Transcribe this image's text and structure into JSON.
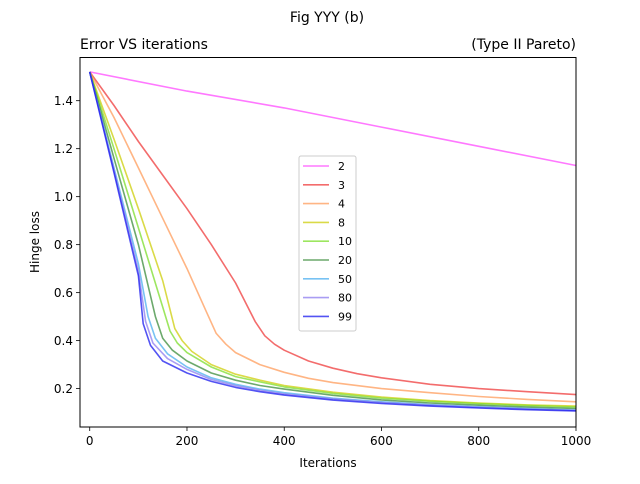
{
  "figure": {
    "suptitle": "Fig YYY (b)",
    "title_left": "Error VS iterations",
    "title_right": "(Type II Pareto)"
  },
  "chart_data": {
    "type": "line",
    "xlabel": "Iterations",
    "ylabel": "Hinge loss",
    "xlim": [
      -20,
      1000
    ],
    "ylim": [
      0.04,
      1.58
    ],
    "xticks": [
      0,
      200,
      400,
      600,
      800,
      1000
    ],
    "yticks": [
      0.2,
      0.4,
      0.6,
      0.8,
      1.0,
      1.2,
      1.4
    ],
    "legend_position": "center",
    "series": [
      {
        "name": "2",
        "color": "#ff44ff",
        "points": [
          [
            0,
            1.52
          ],
          [
            200,
            1.44
          ],
          [
            400,
            1.37
          ],
          [
            600,
            1.29
          ],
          [
            800,
            1.21
          ],
          [
            1000,
            1.13
          ]
        ]
      },
      {
        "name": "3",
        "color": "#ee3333",
        "points": [
          [
            0,
            1.52
          ],
          [
            50,
            1.38
          ],
          [
            100,
            1.23
          ],
          [
            150,
            1.09
          ],
          [
            200,
            0.95
          ],
          [
            250,
            0.8
          ],
          [
            300,
            0.64
          ],
          [
            340,
            0.48
          ],
          [
            360,
            0.42
          ],
          [
            380,
            0.385
          ],
          [
            400,
            0.36
          ],
          [
            450,
            0.315
          ],
          [
            500,
            0.285
          ],
          [
            550,
            0.262
          ],
          [
            600,
            0.245
          ],
          [
            700,
            0.218
          ],
          [
            800,
            0.2
          ],
          [
            900,
            0.187
          ],
          [
            1000,
            0.175
          ]
        ]
      },
      {
        "name": "4",
        "color": "#ff9955",
        "points": [
          [
            0,
            1.52
          ],
          [
            50,
            1.33
          ],
          [
            100,
            1.12
          ],
          [
            150,
            0.91
          ],
          [
            200,
            0.7
          ],
          [
            240,
            0.52
          ],
          [
            260,
            0.43
          ],
          [
            280,
            0.385
          ],
          [
            300,
            0.35
          ],
          [
            350,
            0.3
          ],
          [
            400,
            0.268
          ],
          [
            450,
            0.243
          ],
          [
            500,
            0.225
          ],
          [
            600,
            0.2
          ],
          [
            700,
            0.183
          ],
          [
            800,
            0.167
          ],
          [
            900,
            0.155
          ],
          [
            1000,
            0.145
          ]
        ]
      },
      {
        "name": "8",
        "color": "#cccc00",
        "points": [
          [
            0,
            1.52
          ],
          [
            50,
            1.24
          ],
          [
            100,
            0.95
          ],
          [
            150,
            0.65
          ],
          [
            175,
            0.45
          ],
          [
            190,
            0.4
          ],
          [
            210,
            0.355
          ],
          [
            250,
            0.3
          ],
          [
            300,
            0.26
          ],
          [
            350,
            0.235
          ],
          [
            400,
            0.213
          ],
          [
            500,
            0.185
          ],
          [
            600,
            0.165
          ],
          [
            700,
            0.15
          ],
          [
            800,
            0.14
          ],
          [
            900,
            0.132
          ],
          [
            1000,
            0.127
          ]
        ]
      },
      {
        "name": "10",
        "color": "#77dd22",
        "points": [
          [
            0,
            1.52
          ],
          [
            50,
            1.2
          ],
          [
            100,
            0.87
          ],
          [
            150,
            0.54
          ],
          [
            165,
            0.44
          ],
          [
            180,
            0.39
          ],
          [
            200,
            0.35
          ],
          [
            250,
            0.29
          ],
          [
            300,
            0.25
          ],
          [
            350,
            0.228
          ],
          [
            400,
            0.207
          ],
          [
            500,
            0.18
          ],
          [
            600,
            0.16
          ],
          [
            700,
            0.147
          ],
          [
            800,
            0.137
          ],
          [
            900,
            0.129
          ],
          [
            1000,
            0.123
          ]
        ]
      },
      {
        "name": "20",
        "color": "#338833",
        "points": [
          [
            0,
            1.52
          ],
          [
            50,
            1.16
          ],
          [
            100,
            0.8
          ],
          [
            135,
            0.5
          ],
          [
            150,
            0.41
          ],
          [
            170,
            0.36
          ],
          [
            200,
            0.315
          ],
          [
            250,
            0.265
          ],
          [
            300,
            0.235
          ],
          [
            350,
            0.213
          ],
          [
            400,
            0.198
          ],
          [
            500,
            0.172
          ],
          [
            600,
            0.153
          ],
          [
            700,
            0.14
          ],
          [
            800,
            0.131
          ],
          [
            900,
            0.123
          ],
          [
            1000,
            0.117
          ]
        ]
      },
      {
        "name": "50",
        "color": "#44aaee",
        "points": [
          [
            0,
            1.52
          ],
          [
            50,
            1.12
          ],
          [
            100,
            0.72
          ],
          [
            120,
            0.5
          ],
          [
            135,
            0.41
          ],
          [
            160,
            0.345
          ],
          [
            200,
            0.29
          ],
          [
            250,
            0.245
          ],
          [
            300,
            0.218
          ],
          [
            350,
            0.198
          ],
          [
            400,
            0.183
          ],
          [
            500,
            0.16
          ],
          [
            600,
            0.145
          ],
          [
            700,
            0.133
          ],
          [
            800,
            0.124
          ],
          [
            900,
            0.117
          ],
          [
            1000,
            0.111
          ]
        ]
      },
      {
        "name": "80",
        "color": "#8877ee",
        "points": [
          [
            0,
            1.52
          ],
          [
            50,
            1.11
          ],
          [
            100,
            0.69
          ],
          [
            115,
            0.48
          ],
          [
            130,
            0.39
          ],
          [
            160,
            0.325
          ],
          [
            200,
            0.28
          ],
          [
            250,
            0.238
          ],
          [
            300,
            0.212
          ],
          [
            350,
            0.193
          ],
          [
            400,
            0.178
          ],
          [
            500,
            0.157
          ],
          [
            600,
            0.142
          ],
          [
            700,
            0.131
          ],
          [
            800,
            0.122
          ],
          [
            900,
            0.115
          ],
          [
            1000,
            0.109
          ]
        ]
      },
      {
        "name": "99",
        "color": "#1111ee",
        "points": [
          [
            0,
            1.52
          ],
          [
            50,
            1.1
          ],
          [
            100,
            0.67
          ],
          [
            110,
            0.47
          ],
          [
            125,
            0.38
          ],
          [
            150,
            0.315
          ],
          [
            200,
            0.265
          ],
          [
            250,
            0.23
          ],
          [
            300,
            0.205
          ],
          [
            350,
            0.187
          ],
          [
            400,
            0.173
          ],
          [
            500,
            0.152
          ],
          [
            600,
            0.138
          ],
          [
            700,
            0.127
          ],
          [
            800,
            0.119
          ],
          [
            900,
            0.112
          ],
          [
            1000,
            0.107
          ]
        ]
      }
    ]
  }
}
